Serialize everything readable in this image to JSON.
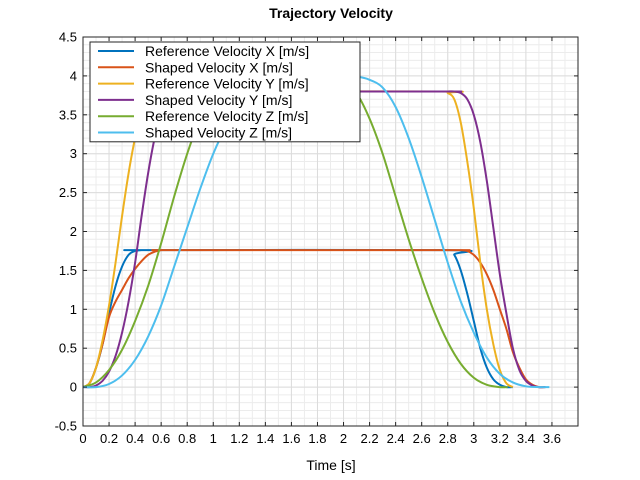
{
  "chart_data": {
    "type": "line",
    "title": "Trajectory Velocity",
    "xlabel": "Time [s]",
    "ylabel": "",
    "xlim": [
      0,
      3.8
    ],
    "ylim": [
      -0.5,
      4.5
    ],
    "xticks": [
      0,
      0.2,
      0.4,
      0.6,
      0.8,
      1,
      1.2,
      1.4,
      1.6,
      1.8,
      2,
      2.2,
      2.4,
      2.6,
      2.8,
      3,
      3.2,
      3.4,
      3.6
    ],
    "xtick_labels": [
      "0",
      "0.2",
      "0.4",
      "0.6",
      "0.8",
      "1",
      "1.2",
      "1.4",
      "1.6",
      "1.8",
      "2",
      "2.2",
      "2.4",
      "2.6",
      "2.8",
      "3",
      "3.2",
      "3.4",
      "3.6"
    ],
    "yticks": [
      -0.5,
      0,
      0.5,
      1,
      1.5,
      2,
      2.5,
      3,
      3.5,
      4,
      4.5
    ],
    "ytick_labels": [
      "-0.5",
      "0",
      "0.5",
      "1",
      "1.5",
      "2",
      "2.5",
      "3",
      "3.5",
      "4",
      "4.5"
    ],
    "grid": true,
    "minor_grid": true,
    "legend_position": "top-left",
    "series": [
      {
        "name": "Reference Velocity X [m/s]",
        "color": "#0072BD",
        "x": [
          0,
          0.05,
          0.1,
          0.15,
          0.2,
          0.25,
          0.3,
          0.35,
          0.4,
          0.45,
          0.5,
          2.8,
          2.85,
          2.9,
          2.95,
          3.0,
          3.05,
          3.1,
          3.15,
          3.2,
          3.25,
          3.3
        ],
        "y": [
          0,
          0.05,
          0.25,
          0.55,
          0.95,
          1.3,
          1.55,
          1.7,
          1.75,
          1.76,
          1.76,
          1.76,
          1.7,
          1.5,
          1.2,
          0.85,
          0.5,
          0.25,
          0.1,
          0.03,
          0.0,
          0.0
        ]
      },
      {
        "name": "Shaped Velocity X [m/s]",
        "color": "#D95319",
        "x": [
          0,
          0.05,
          0.1,
          0.15,
          0.2,
          0.25,
          0.3,
          0.35,
          0.4,
          0.45,
          0.5,
          0.55,
          0.6,
          0.65,
          0.7,
          2.8,
          2.85,
          2.9,
          2.95,
          3.0,
          3.05,
          3.1,
          3.15,
          3.2,
          3.25,
          3.3,
          3.35,
          3.4,
          3.45,
          3.5,
          3.55
        ],
        "y": [
          0,
          0.05,
          0.25,
          0.55,
          0.9,
          1.1,
          1.25,
          1.4,
          1.52,
          1.62,
          1.7,
          1.74,
          1.76,
          1.76,
          1.76,
          1.76,
          1.76,
          1.76,
          1.75,
          1.7,
          1.6,
          1.45,
          1.25,
          1.0,
          0.75,
          0.45,
          0.25,
          0.1,
          0.03,
          0.0,
          0.0
        ]
      },
      {
        "name": "Reference Velocity Y [m/s]",
        "color": "#EDB120",
        "x": [
          0,
          0.05,
          0.1,
          0.15,
          0.2,
          0.25,
          0.3,
          0.35,
          0.4,
          0.45,
          0.5,
          0.55,
          0.6,
          0.65,
          0.7,
          2.75,
          2.8,
          2.85,
          2.9,
          2.95,
          3.0,
          3.05,
          3.1,
          3.15,
          3.2,
          3.25,
          3.3
        ],
        "y": [
          0,
          0.05,
          0.25,
          0.6,
          1.05,
          1.6,
          2.2,
          2.75,
          3.2,
          3.5,
          3.68,
          3.76,
          3.79,
          3.8,
          3.8,
          3.8,
          3.78,
          3.7,
          3.4,
          2.9,
          2.3,
          1.6,
          1.0,
          0.55,
          0.22,
          0.05,
          0.0
        ]
      },
      {
        "name": "Shaped Velocity Y [m/s]",
        "color": "#7E2F8E",
        "x": [
          0,
          0.05,
          0.1,
          0.15,
          0.2,
          0.25,
          0.3,
          0.35,
          0.4,
          0.45,
          0.5,
          0.55,
          0.6,
          0.65,
          0.7,
          0.75,
          0.8,
          0.85,
          2.75,
          2.8,
          2.85,
          2.9,
          2.95,
          3.0,
          3.05,
          3.1,
          3.15,
          3.2,
          3.25,
          3.3,
          3.35,
          3.4,
          3.45,
          3.5,
          3.55
        ],
        "y": [
          0,
          0.0,
          0.02,
          0.08,
          0.2,
          0.4,
          0.7,
          1.1,
          1.6,
          2.2,
          2.75,
          3.2,
          3.5,
          3.68,
          3.76,
          3.79,
          3.8,
          3.8,
          3.8,
          3.8,
          3.8,
          3.78,
          3.7,
          3.5,
          3.15,
          2.65,
          2.05,
          1.45,
          0.95,
          0.5,
          0.22,
          0.08,
          0.02,
          0.0,
          0.0
        ]
      },
      {
        "name": "Reference Velocity Z [m/s]",
        "color": "#77AC30",
        "x": [
          0,
          0.1,
          0.2,
          0.3,
          0.4,
          0.5,
          0.6,
          0.7,
          0.8,
          0.9,
          1.0,
          1.1,
          1.2,
          1.3,
          1.4,
          1.5,
          1.6,
          1.7,
          1.8,
          1.9,
          2.0,
          2.1,
          2.2,
          2.3,
          2.4,
          2.5,
          2.6,
          2.7,
          2.8,
          2.9,
          3.0,
          3.1,
          3.2,
          3.26
        ],
        "y": [
          0,
          0.06,
          0.22,
          0.48,
          0.85,
          1.3,
          1.85,
          2.45,
          3.0,
          3.45,
          3.75,
          3.95,
          4.05,
          4.1,
          4.12,
          4.12,
          4.12,
          4.12,
          4.1,
          4.05,
          3.95,
          3.78,
          3.45,
          3.0,
          2.45,
          1.9,
          1.4,
          0.95,
          0.58,
          0.3,
          0.12,
          0.03,
          0.0,
          0.0
        ]
      },
      {
        "name": "Shaped Velocity Z [m/s]",
        "color": "#4DBEEE",
        "x": [
          0,
          0.1,
          0.2,
          0.3,
          0.4,
          0.5,
          0.6,
          0.7,
          0.8,
          0.9,
          1.0,
          1.1,
          1.2,
          1.3,
          1.4,
          1.5,
          1.6,
          1.7,
          1.8,
          1.9,
          2.0,
          2.1,
          2.2,
          2.3,
          2.4,
          2.5,
          2.6,
          2.7,
          2.8,
          2.9,
          3.0,
          3.1,
          3.2,
          3.3,
          3.4,
          3.5,
          3.58
        ],
        "y": [
          0,
          0.0,
          0.04,
          0.15,
          0.35,
          0.65,
          1.05,
          1.55,
          2.05,
          2.55,
          3.0,
          3.35,
          3.6,
          3.78,
          3.88,
          3.93,
          3.96,
          3.98,
          3.99,
          3.99,
          3.99,
          3.99,
          3.95,
          3.85,
          3.6,
          3.2,
          2.7,
          2.15,
          1.6,
          1.1,
          0.7,
          0.38,
          0.17,
          0.06,
          0.01,
          0.0,
          0.0
        ]
      }
    ]
  }
}
